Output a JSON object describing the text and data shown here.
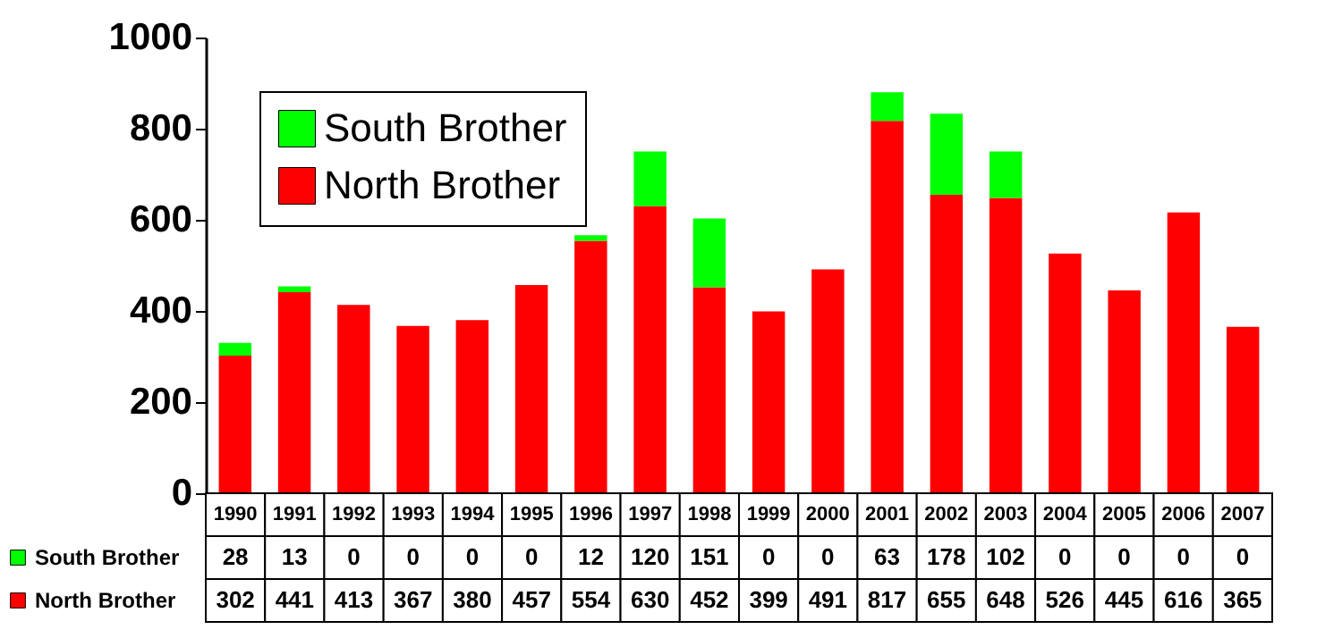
{
  "chart_data": {
    "type": "bar",
    "stacked": true,
    "data_labels": true,
    "legend": "top left",
    "categories": [
      "1990",
      "1991",
      "1992",
      "1993",
      "1994",
      "1995",
      "1996",
      "1997",
      "1998",
      "1999",
      "2000",
      "2001",
      "2002",
      "2003",
      "2004",
      "2005",
      "2006",
      "2007"
    ],
    "series": [
      {
        "name": "North Brother",
        "color": "#ff0000",
        "values": [
          302,
          441,
          413,
          367,
          380,
          457,
          554,
          630,
          452,
          399,
          491,
          817,
          655,
          648,
          526,
          445,
          616,
          365
        ]
      },
      {
        "name": "South Brother",
        "color": "#00ff00",
        "values": [
          28,
          13,
          0,
          0,
          0,
          0,
          12,
          120,
          151,
          0,
          0,
          63,
          178,
          102,
          0,
          0,
          0,
          0
        ]
      }
    ],
    "ylim": [
      0,
      1000
    ],
    "yticks": [
      0,
      200,
      400,
      600,
      800,
      1000
    ]
  }
}
